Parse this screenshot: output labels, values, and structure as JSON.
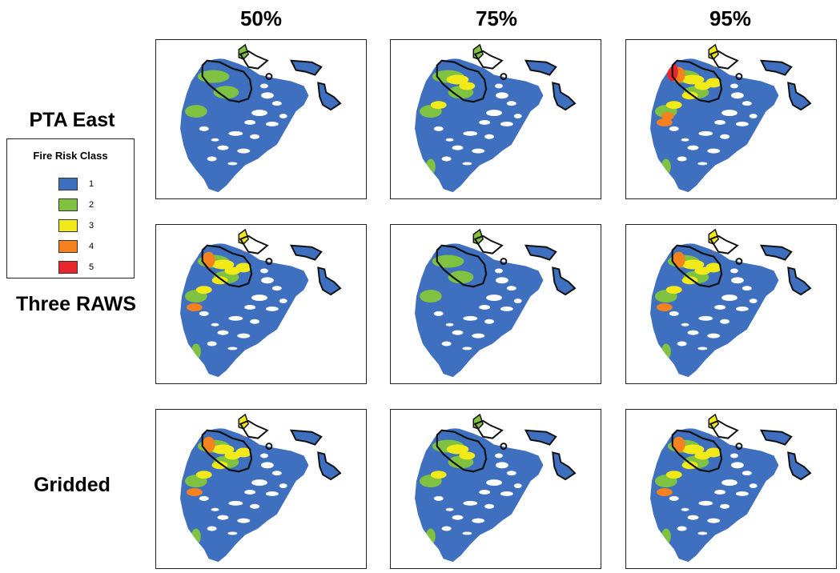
{
  "columns": [
    "50%",
    "75%",
    "95%"
  ],
  "rows": [
    "PTA East",
    "Three RAWS",
    "Gridded"
  ],
  "legend": {
    "title": "Fire Risk Class",
    "classes": [
      {
        "label": "1",
        "color": "#3f6fbf"
      },
      {
        "label": "2",
        "color": "#7fc241"
      },
      {
        "label": "3",
        "color": "#f2ea18"
      },
      {
        "label": "4",
        "color": "#f5821f"
      },
      {
        "label": "5",
        "color": "#e8262b"
      }
    ]
  },
  "panels": [
    {
      "row": "PTA East",
      "column": "50%",
      "dominant_class": "1",
      "risk_intensity": 1
    },
    {
      "row": "PTA East",
      "column": "75%",
      "dominant_class": "1",
      "risk_intensity": 2
    },
    {
      "row": "PTA East",
      "column": "95%",
      "dominant_class": "1",
      "risk_intensity": 4
    },
    {
      "row": "Three RAWS",
      "column": "50%",
      "dominant_class": "1",
      "risk_intensity": 3
    },
    {
      "row": "Three RAWS",
      "column": "75%",
      "dominant_class": "1",
      "risk_intensity": 1
    },
    {
      "row": "Three RAWS",
      "column": "95%",
      "dominant_class": "1",
      "risk_intensity": 3
    },
    {
      "row": "Gridded",
      "column": "50%",
      "dominant_class": "1",
      "risk_intensity": 3
    },
    {
      "row": "Gridded",
      "column": "75%",
      "dominant_class": "1",
      "risk_intensity": 2
    },
    {
      "row": "Gridded",
      "column": "95%",
      "dominant_class": "1",
      "risk_intensity": 3
    }
  ]
}
